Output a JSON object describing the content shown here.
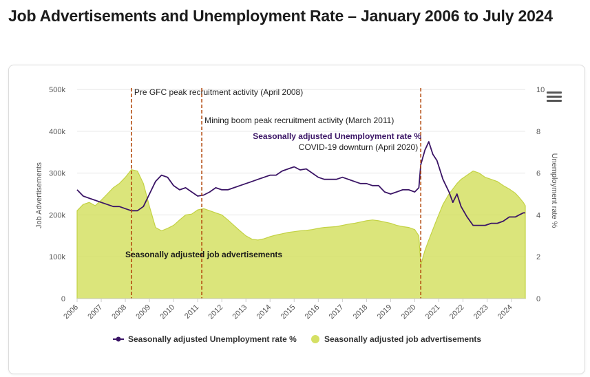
{
  "page": {
    "title": "Job Advertisements and Unemployment Rate – January 2006 to July 2024",
    "menu_icon": "hamburger-menu-icon"
  },
  "colors": {
    "unemployment": "#3b1566",
    "job_ads_fill": "#d5e064",
    "job_ads_line": "#c3d244",
    "annotation_line": "#b34a0e",
    "grid": "#e6e6e6"
  },
  "chart_data": {
    "type": "area",
    "xlabel": "",
    "x_ticks": [
      "2006",
      "2007",
      "2008",
      "2009",
      "2010",
      "2011",
      "2012",
      "2013",
      "2014",
      "2015",
      "2016",
      "2017",
      "2018",
      "2019",
      "2020",
      "2021",
      "2022",
      "2023",
      "2024"
    ],
    "x_range": [
      2006.0,
      2024.583
    ],
    "y_left": {
      "label": "Job Advertisements",
      "range": [
        0,
        500000
      ],
      "ticks": [
        0,
        100000,
        200000,
        300000,
        400000,
        500000
      ],
      "tick_labels": [
        "0",
        "100k",
        "200k",
        "300k",
        "400k",
        "500k"
      ]
    },
    "y_right": {
      "label": "Unemployment rate %",
      "range": [
        0,
        10
      ],
      "ticks": [
        0,
        2,
        4,
        6,
        8,
        10
      ],
      "tick_labels": [
        "0",
        "2",
        "4",
        "6",
        "8",
        "10"
      ]
    },
    "grid": true,
    "legend_position": "bottom-center",
    "series": [
      {
        "name": "Seasonally adjusted Unemployment rate %",
        "type": "line",
        "axis": "right",
        "points": [
          [
            2006.0,
            5.2
          ],
          [
            2006.25,
            4.9
          ],
          [
            2006.5,
            4.8
          ],
          [
            2006.75,
            4.7
          ],
          [
            2007.0,
            4.6
          ],
          [
            2007.25,
            4.5
          ],
          [
            2007.5,
            4.4
          ],
          [
            2007.75,
            4.4
          ],
          [
            2008.0,
            4.3
          ],
          [
            2008.25,
            4.2
          ],
          [
            2008.5,
            4.2
          ],
          [
            2008.75,
            4.4
          ],
          [
            2009.0,
            5.0
          ],
          [
            2009.25,
            5.6
          ],
          [
            2009.5,
            5.9
          ],
          [
            2009.75,
            5.8
          ],
          [
            2010.0,
            5.4
          ],
          [
            2010.25,
            5.2
          ],
          [
            2010.5,
            5.3
          ],
          [
            2010.75,
            5.1
          ],
          [
            2011.0,
            4.9
          ],
          [
            2011.25,
            4.95
          ],
          [
            2011.5,
            5.1
          ],
          [
            2011.75,
            5.3
          ],
          [
            2012.0,
            5.2
          ],
          [
            2012.25,
            5.2
          ],
          [
            2012.5,
            5.3
          ],
          [
            2012.75,
            5.4
          ],
          [
            2013.0,
            5.5
          ],
          [
            2013.25,
            5.6
          ],
          [
            2013.5,
            5.7
          ],
          [
            2013.75,
            5.8
          ],
          [
            2014.0,
            5.9
          ],
          [
            2014.25,
            5.9
          ],
          [
            2014.5,
            6.1
          ],
          [
            2014.75,
            6.2
          ],
          [
            2015.0,
            6.3
          ],
          [
            2015.25,
            6.15
          ],
          [
            2015.5,
            6.2
          ],
          [
            2015.75,
            6.0
          ],
          [
            2016.0,
            5.8
          ],
          [
            2016.25,
            5.7
          ],
          [
            2016.5,
            5.7
          ],
          [
            2016.75,
            5.7
          ],
          [
            2017.0,
            5.8
          ],
          [
            2017.25,
            5.7
          ],
          [
            2017.5,
            5.6
          ],
          [
            2017.75,
            5.5
          ],
          [
            2018.0,
            5.5
          ],
          [
            2018.25,
            5.4
          ],
          [
            2018.5,
            5.4
          ],
          [
            2018.75,
            5.1
          ],
          [
            2019.0,
            5.0
          ],
          [
            2019.25,
            5.1
          ],
          [
            2019.5,
            5.2
          ],
          [
            2019.75,
            5.2
          ],
          [
            2020.0,
            5.1
          ],
          [
            2020.17,
            5.3
          ],
          [
            2020.25,
            6.4
          ],
          [
            2020.42,
            7.1
          ],
          [
            2020.58,
            7.5
          ],
          [
            2020.75,
            6.9
          ],
          [
            2020.92,
            6.6
          ],
          [
            2021.17,
            5.7
          ],
          [
            2021.42,
            5.1
          ],
          [
            2021.58,
            4.6
          ],
          [
            2021.75,
            5.0
          ],
          [
            2021.92,
            4.4
          ],
          [
            2022.17,
            3.9
          ],
          [
            2022.42,
            3.5
          ],
          [
            2022.67,
            3.5
          ],
          [
            2022.92,
            3.5
          ],
          [
            2023.17,
            3.6
          ],
          [
            2023.42,
            3.6
          ],
          [
            2023.67,
            3.7
          ],
          [
            2023.92,
            3.9
          ],
          [
            2024.17,
            3.9
          ],
          [
            2024.33,
            4.0
          ],
          [
            2024.5,
            4.1
          ],
          [
            2024.583,
            4.1
          ]
        ]
      },
      {
        "name": "Seasonally adjusted job advertisements",
        "type": "area",
        "axis": "left",
        "points": [
          [
            2006.0,
            210000
          ],
          [
            2006.25,
            225000
          ],
          [
            2006.5,
            230000
          ],
          [
            2006.75,
            222000
          ],
          [
            2007.0,
            235000
          ],
          [
            2007.25,
            250000
          ],
          [
            2007.5,
            265000
          ],
          [
            2007.75,
            275000
          ],
          [
            2008.0,
            290000
          ],
          [
            2008.25,
            308000
          ],
          [
            2008.5,
            305000
          ],
          [
            2008.75,
            275000
          ],
          [
            2009.0,
            220000
          ],
          [
            2009.25,
            170000
          ],
          [
            2009.5,
            162000
          ],
          [
            2009.75,
            168000
          ],
          [
            2010.0,
            175000
          ],
          [
            2010.25,
            188000
          ],
          [
            2010.5,
            200000
          ],
          [
            2010.75,
            202000
          ],
          [
            2011.0,
            212000
          ],
          [
            2011.25,
            215000
          ],
          [
            2011.5,
            210000
          ],
          [
            2011.75,
            205000
          ],
          [
            2012.0,
            200000
          ],
          [
            2012.25,
            188000
          ],
          [
            2012.5,
            175000
          ],
          [
            2012.75,
            162000
          ],
          [
            2013.0,
            150000
          ],
          [
            2013.25,
            142000
          ],
          [
            2013.5,
            140000
          ],
          [
            2013.75,
            143000
          ],
          [
            2014.0,
            148000
          ],
          [
            2014.25,
            152000
          ],
          [
            2014.5,
            155000
          ],
          [
            2014.75,
            158000
          ],
          [
            2015.0,
            160000
          ],
          [
            2015.25,
            162000
          ],
          [
            2015.5,
            163000
          ],
          [
            2015.75,
            165000
          ],
          [
            2016.0,
            168000
          ],
          [
            2016.25,
            170000
          ],
          [
            2016.5,
            171000
          ],
          [
            2016.75,
            172000
          ],
          [
            2017.0,
            175000
          ],
          [
            2017.25,
            178000
          ],
          [
            2017.5,
            180000
          ],
          [
            2017.75,
            183000
          ],
          [
            2018.0,
            186000
          ],
          [
            2018.25,
            188000
          ],
          [
            2018.5,
            186000
          ],
          [
            2018.75,
            183000
          ],
          [
            2019.0,
            180000
          ],
          [
            2019.25,
            175000
          ],
          [
            2019.5,
            172000
          ],
          [
            2019.75,
            170000
          ],
          [
            2020.0,
            165000
          ],
          [
            2020.17,
            150000
          ],
          [
            2020.25,
            80000
          ],
          [
            2020.42,
            115000
          ],
          [
            2020.58,
            140000
          ],
          [
            2020.75,
            165000
          ],
          [
            2020.92,
            190000
          ],
          [
            2021.17,
            225000
          ],
          [
            2021.42,
            250000
          ],
          [
            2021.58,
            262000
          ],
          [
            2021.75,
            275000
          ],
          [
            2021.92,
            285000
          ],
          [
            2022.17,
            295000
          ],
          [
            2022.42,
            305000
          ],
          [
            2022.67,
            300000
          ],
          [
            2022.92,
            290000
          ],
          [
            2023.17,
            285000
          ],
          [
            2023.42,
            280000
          ],
          [
            2023.67,
            270000
          ],
          [
            2023.92,
            262000
          ],
          [
            2024.17,
            252000
          ],
          [
            2024.33,
            242000
          ],
          [
            2024.5,
            230000
          ],
          [
            2024.583,
            222000
          ]
        ]
      }
    ],
    "annotations": [
      {
        "x": 2008.25,
        "label": "Pre GFC peak recruitment activity (April 2008)"
      },
      {
        "x": 2011.17,
        "label": "Mining boom peak recruitment activity (March 2011)"
      },
      {
        "x": 2020.25,
        "label": "COVID-19 downturn (April 2020)"
      }
    ],
    "series_labels": [
      {
        "series": "Seasonally adjusted Unemployment rate %",
        "text": "Seasonally adjusted Unemployment rate %"
      },
      {
        "series": "Seasonally adjusted job advertisements",
        "text": "Seasonally adjusted job advertisements"
      }
    ]
  }
}
